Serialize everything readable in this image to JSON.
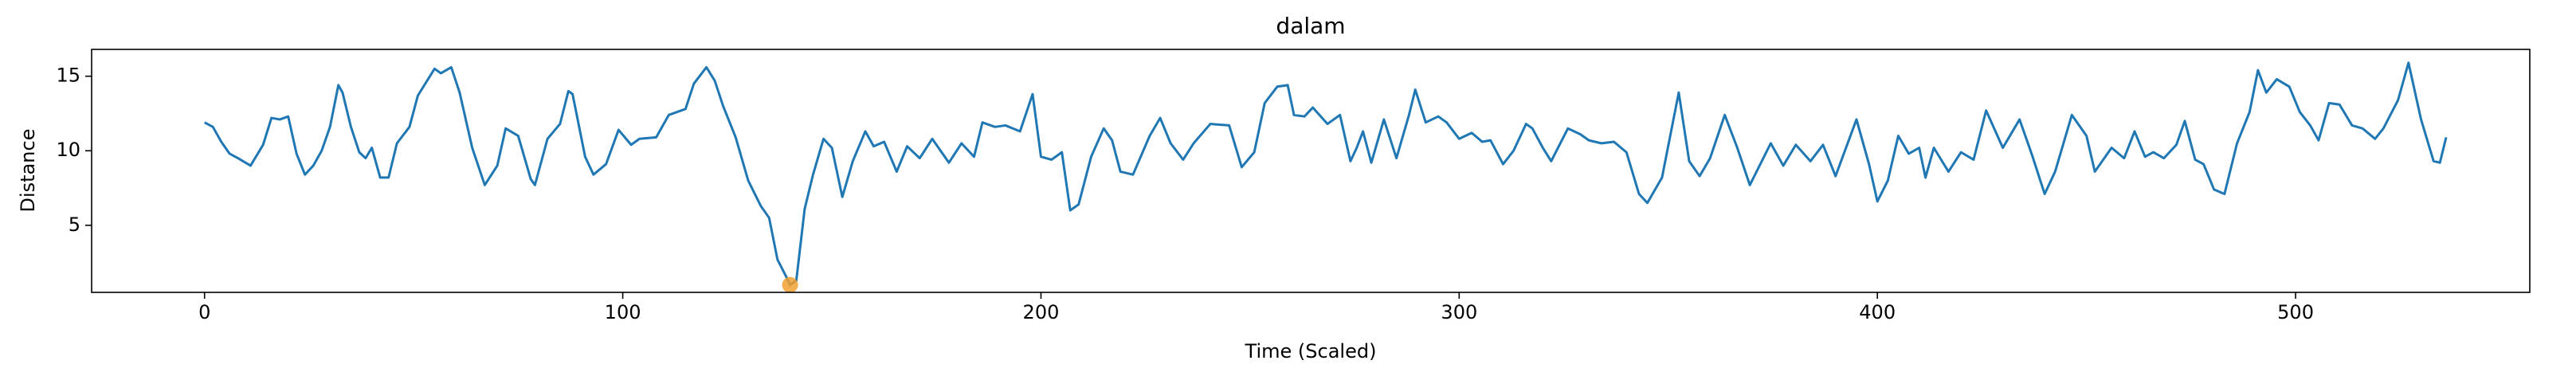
{
  "chart_data": {
    "type": "line",
    "title": "dalam",
    "xlabel": "Time (Scaled)",
    "ylabel": "Distance",
    "color": "#1f77b4",
    "x": [
      0,
      2,
      4,
      6,
      8,
      11,
      14,
      16,
      18,
      20,
      22,
      24,
      26,
      28,
      30,
      32,
      33,
      35,
      37,
      38.5,
      40,
      42,
      44,
      46,
      49,
      51,
      55,
      56.5,
      59,
      61,
      64,
      67,
      70,
      72,
      75,
      78,
      79,
      82,
      85,
      87,
      88,
      91,
      93,
      96,
      99,
      102,
      104,
      108,
      111,
      115,
      117,
      120,
      122,
      124,
      127,
      130,
      133,
      135,
      137,
      139,
      140,
      141.5,
      143.5,
      145.5,
      148,
      150,
      152.5,
      155,
      158,
      160,
      162.5,
      165.5,
      168,
      171,
      174,
      178,
      181,
      184,
      186,
      189,
      191.5,
      195,
      198,
      200,
      202.5,
      205,
      207,
      209,
      212,
      215,
      217,
      219,
      222,
      226,
      228.5,
      231,
      234,
      236.5,
      240.5,
      245,
      248,
      251,
      253.5,
      256.5,
      259,
      260.5,
      263,
      265,
      268.5,
      271.5,
      274,
      275.5,
      277,
      279,
      282,
      285,
      288,
      289.5,
      292,
      295,
      297,
      300,
      303,
      305.5,
      307.5,
      310.5,
      313,
      316,
      317.5,
      320,
      322,
      326,
      329,
      331,
      334,
      337,
      340,
      343,
      345,
      348.5,
      352.5,
      355,
      357.5,
      360,
      363.5,
      366.5,
      369.5,
      374.5,
      377.5,
      380.5,
      384,
      387,
      390,
      395,
      398,
      400,
      402.5,
      405,
      407.5,
      410,
      411.5,
      413.5,
      417,
      420,
      423,
      426,
      430,
      434,
      437,
      440,
      442.5,
      446.5,
      450,
      452,
      456,
      459,
      461.5,
      464,
      466,
      468.5,
      471.5,
      473.5,
      476,
      478,
      480.5,
      483,
      486,
      489,
      491,
      493,
      495.5,
      498.5,
      501,
      503.5,
      505.5,
      508,
      510.5,
      513.5,
      516,
      519,
      521,
      524.5,
      527,
      530,
      533,
      534.5,
      536
    ],
    "values": [
      11.9,
      11.6,
      10.6,
      9.8,
      9.5,
      9.0,
      10.4,
      12.2,
      12.1,
      12.3,
      9.8,
      8.4,
      9.0,
      10.0,
      11.6,
      14.4,
      13.9,
      11.6,
      9.9,
      9.5,
      10.2,
      8.2,
      8.2,
      10.5,
      11.6,
      13.7,
      15.5,
      15.2,
      15.6,
      13.9,
      10.2,
      7.7,
      9.0,
      11.5,
      11.0,
      8.1,
      7.7,
      10.8,
      11.8,
      14.0,
      13.8,
      9.6,
      8.4,
      9.1,
      11.4,
      10.4,
      10.8,
      10.9,
      12.4,
      12.8,
      14.5,
      15.6,
      14.7,
      13.0,
      10.9,
      8.0,
      6.3,
      5.5,
      2.7,
      1.6,
      1.0,
      1.3,
      6.1,
      8.4,
      10.8,
      10.2,
      6.9,
      9.3,
      11.3,
      10.3,
      10.6,
      8.6,
      10.3,
      9.5,
      10.8,
      9.2,
      10.5,
      9.6,
      11.9,
      11.6,
      11.7,
      11.3,
      13.8,
      9.6,
      9.4,
      9.9,
      6.0,
      6.4,
      9.6,
      11.5,
      10.7,
      8.6,
      8.4,
      11.0,
      12.2,
      10.5,
      9.4,
      10.5,
      11.8,
      11.7,
      8.9,
      9.9,
      13.2,
      14.3,
      14.4,
      12.4,
      12.3,
      12.9,
      11.8,
      12.4,
      9.3,
      10.2,
      11.3,
      9.2,
      12.1,
      9.5,
      12.4,
      14.1,
      11.9,
      12.3,
      11.9,
      10.8,
      11.2,
      10.6,
      10.7,
      9.1,
      10.0,
      11.8,
      11.5,
      10.2,
      9.3,
      11.5,
      11.1,
      10.7,
      10.5,
      10.6,
      9.9,
      7.1,
      6.5,
      8.2,
      13.9,
      9.3,
      8.3,
      9.5,
      12.4,
      10.2,
      7.7,
      10.5,
      9.0,
      10.4,
      9.3,
      10.4,
      8.3,
      12.1,
      9.1,
      6.6,
      8.0,
      11.0,
      9.8,
      10.2,
      8.2,
      10.2,
      8.6,
      9.9,
      9.4,
      12.7,
      10.2,
      12.1,
      9.7,
      7.1,
      8.6,
      12.4,
      11.0,
      8.6,
      10.2,
      9.5,
      11.3,
      9.6,
      9.9,
      9.5,
      10.4,
      12.0,
      9.4,
      9.1,
      7.4,
      7.1,
      10.5,
      12.6,
      15.4,
      13.9,
      14.8,
      14.3,
      12.6,
      11.7,
      10.7,
      13.2,
      13.1,
      11.7,
      11.5,
      10.8,
      11.5,
      13.4,
      15.9,
      12.1,
      9.3,
      9.2,
      10.9
    ],
    "highlight": {
      "x": 140,
      "y": 1.0,
      "color": "#f0a030"
    },
    "xlim": [
      -27,
      556
    ],
    "ylim": [
      0.5,
      16.8
    ],
    "xticks": [
      0,
      100,
      200,
      300,
      400,
      500
    ],
    "yticks": [
      5,
      10,
      15
    ]
  }
}
